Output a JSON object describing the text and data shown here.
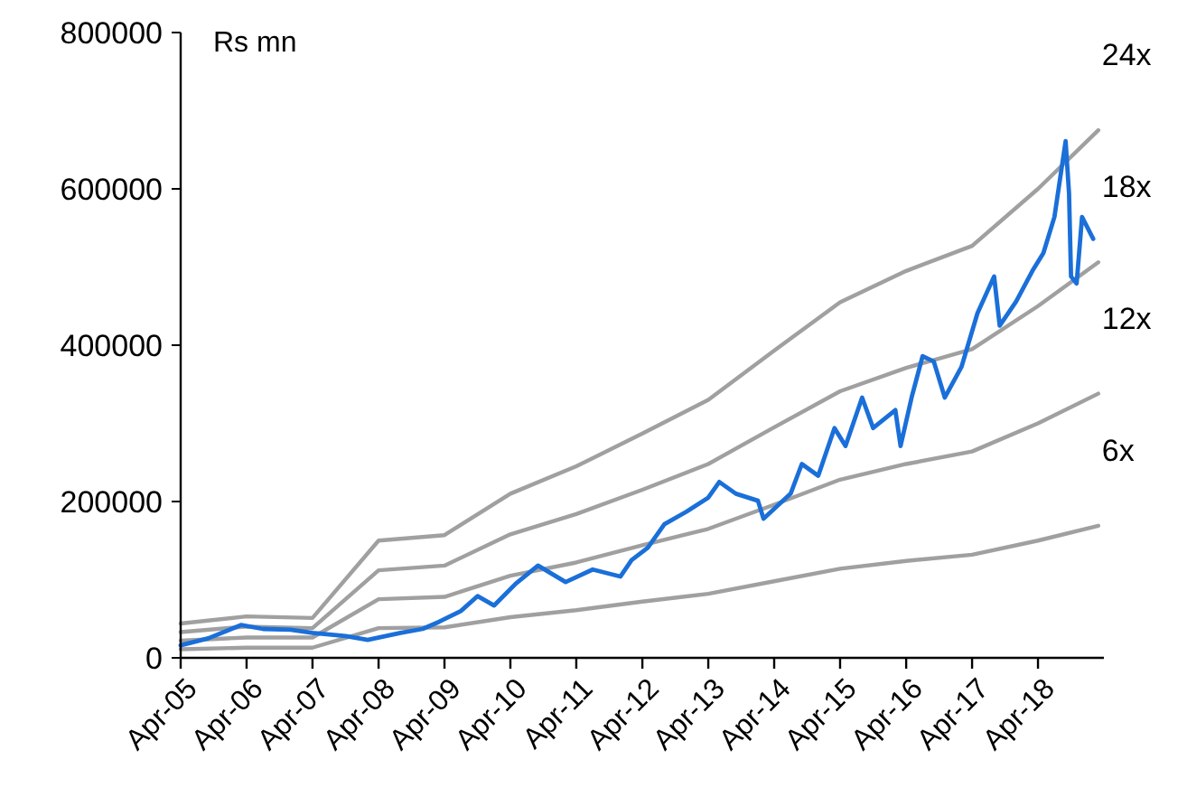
{
  "chart_data": {
    "type": "line",
    "ylabel": "Rs mn",
    "xlim": [
      "2005-04",
      "2019-04"
    ],
    "ylim": [
      0,
      800000
    ],
    "yticks": [
      0,
      200000,
      400000,
      600000,
      800000
    ],
    "xticks": [
      {
        "value": "2005-04",
        "label": "Apr-05"
      },
      {
        "value": "2006-04",
        "label": "Apr-06"
      },
      {
        "value": "2007-04",
        "label": "Apr-07"
      },
      {
        "value": "2008-04",
        "label": "Apr-08"
      },
      {
        "value": "2009-04",
        "label": "Apr-09"
      },
      {
        "value": "2010-04",
        "label": "Apr-10"
      },
      {
        "value": "2011-04",
        "label": "Apr-11"
      },
      {
        "value": "2012-04",
        "label": "Apr-12"
      },
      {
        "value": "2013-04",
        "label": "Apr-13"
      },
      {
        "value": "2014-04",
        "label": "Apr-14"
      },
      {
        "value": "2015-04",
        "label": "Apr-15"
      },
      {
        "value": "2016-04",
        "label": "Apr-16"
      },
      {
        "value": "2017-04",
        "label": "Apr-17"
      },
      {
        "value": "2018-04",
        "label": "Apr-18"
      }
    ],
    "grid": false,
    "marker": "none",
    "line_style": "solid",
    "series": [
      {
        "name": "24x",
        "color": "#a0a0a0",
        "x": [
          "2005-04",
          "2006-04",
          "2007-04",
          "2008-04",
          "2009-04",
          "2010-04",
          "2011-04",
          "2012-04",
          "2013-04",
          "2014-04",
          "2015-04",
          "2016-04",
          "2017-04",
          "2018-04",
          "2019-03"
        ],
        "values": [
          44000,
          53000,
          51000,
          150000,
          157000,
          210000,
          245000,
          287000,
          330000,
          393000,
          455000,
          495000,
          527000,
          600000,
          675000
        ]
      },
      {
        "name": "18x",
        "color": "#a0a0a0",
        "x": [
          "2005-04",
          "2006-04",
          "2007-04",
          "2008-04",
          "2009-04",
          "2010-04",
          "2011-04",
          "2012-04",
          "2013-04",
          "2014-04",
          "2015-04",
          "2016-04",
          "2017-04",
          "2018-04",
          "2019-03"
        ],
        "values": [
          33000,
          40000,
          38000,
          112000,
          118000,
          158000,
          184000,
          215000,
          248000,
          295000,
          341000,
          371000,
          395000,
          450000,
          506000
        ]
      },
      {
        "name": "12x",
        "color": "#a0a0a0",
        "x": [
          "2005-04",
          "2006-04",
          "2007-04",
          "2008-04",
          "2009-04",
          "2010-04",
          "2011-04",
          "2012-04",
          "2013-04",
          "2014-04",
          "2015-04",
          "2016-04",
          "2017-04",
          "2018-04",
          "2019-03"
        ],
        "values": [
          22000,
          26000,
          26000,
          75000,
          78000,
          105000,
          122000,
          144000,
          165000,
          196000,
          228000,
          248000,
          264000,
          300000,
          338000
        ]
      },
      {
        "name": "6x",
        "color": "#a0a0a0",
        "x": [
          "2005-04",
          "2006-04",
          "2007-04",
          "2008-04",
          "2009-04",
          "2010-04",
          "2011-04",
          "2012-04",
          "2013-04",
          "2014-04",
          "2015-04",
          "2016-04",
          "2017-04",
          "2018-04",
          "2019-03"
        ],
        "values": [
          11000,
          13000,
          13000,
          38000,
          39000,
          52000,
          61000,
          72000,
          82000,
          98000,
          114000,
          124000,
          132000,
          150000,
          169000
        ]
      },
      {
        "color": "#1a6fd9",
        "x": [
          "2005-04",
          "2005-09",
          "2006-03",
          "2006-07",
          "2006-12",
          "2007-04",
          "2007-10",
          "2008-02",
          "2008-08",
          "2008-12",
          "2009-03",
          "2009-07",
          "2009-10",
          "2010-01",
          "2010-05",
          "2010-09",
          "2011-02",
          "2011-07",
          "2011-12",
          "2012-02",
          "2012-05",
          "2012-08",
          "2012-12",
          "2013-04",
          "2013-06",
          "2013-09",
          "2014-01",
          "2014-02",
          "2014-07",
          "2014-09",
          "2014-12",
          "2015-03",
          "2015-05",
          "2015-08",
          "2015-10",
          "2016-02",
          "2016-03",
          "2016-05",
          "2016-07",
          "2016-09",
          "2016-11",
          "2017-02",
          "2017-05",
          "2017-08",
          "2017-09",
          "2017-12",
          "2018-03",
          "2018-05",
          "2018-07",
          "2018-09-01",
          "2018-09-20",
          "2018-10",
          "2018-11",
          "2018-12",
          "2019-02"
        ],
        "values": [
          16000,
          25000,
          42000,
          37000,
          36000,
          32000,
          28000,
          23000,
          32000,
          37000,
          46000,
          60000,
          79000,
          67000,
          95000,
          118000,
          97000,
          113000,
          104000,
          125000,
          141000,
          171000,
          187000,
          205000,
          225000,
          210000,
          201000,
          178000,
          210000,
          248000,
          233000,
          294000,
          271000,
          333000,
          294000,
          317000,
          271000,
          333000,
          386000,
          379000,
          333000,
          372000,
          441000,
          488000,
          425000,
          456000,
          495000,
          518000,
          564000,
          661000,
          594000,
          488000,
          479000,
          564000,
          536000
        ]
      }
    ]
  }
}
